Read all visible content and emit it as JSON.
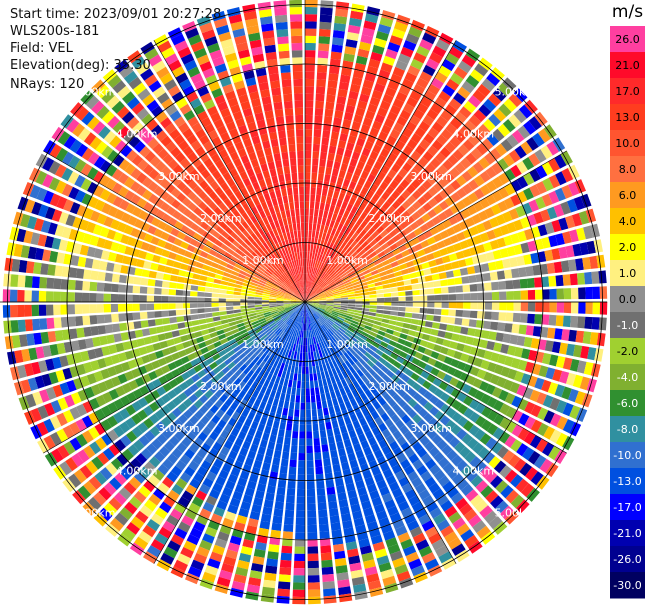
{
  "info": {
    "start_time": "Start time: 2023/09/01 20:27:28",
    "instrument": "WLS200s-181",
    "field": "Field: VEL",
    "elevation": "Elevation(deg): 35.30",
    "nrays": "NRays: 120"
  },
  "chart_data": {
    "type": "heatmap",
    "subtype": "polar-ppi",
    "field": "VEL",
    "units": "m/s",
    "elevation_deg": 35.3,
    "n_rays": 120,
    "range_rings_km": [
      1.0,
      2.0,
      3.0,
      4.0,
      5.0
    ],
    "ring_labels": [
      "1.00km",
      "2.00km",
      "3.00km",
      "4.00km",
      "5.00km"
    ],
    "max_range_km": 5.9,
    "colorbar": {
      "ticks": [
        "26.0",
        "21.0",
        "17.0",
        "13.0",
        "10.0",
        "8.0",
        "6.0",
        "4.0",
        "2.0",
        "1.0",
        "0.0",
        "-1.0",
        "-2.0",
        "-4.0",
        "-6.0",
        "-8.0",
        "-10.0",
        "-13.0",
        "-17.0",
        "-21.0",
        "-26.0",
        "-30.0"
      ],
      "colors": [
        "#ff3fa0",
        "#ff0a2a",
        "#ff2a2a",
        "#ff3d1f",
        "#ff5530",
        "#ff7040",
        "#ff9a20",
        "#ffc000",
        "#ffff00",
        "#fff080",
        "#909090",
        "#707070",
        "#a0d030",
        "#80b030",
        "#309030",
        "#3090a0",
        "#3070d0",
        "#0050e0",
        "#0000ff",
        "#0000b0",
        "#000090",
        "#000060"
      ]
    },
    "sectors": [
      {
        "azimuth_range_deg": [
          0,
          90
        ],
        "dominant_value": 13.0
      },
      {
        "azimuth_range_deg": [
          270,
          360
        ],
        "dominant_value": 13.0
      },
      {
        "azimuth_range_deg": [
          90,
          135
        ],
        "dominant_value": -6.0
      },
      {
        "azimuth_range_deg": [
          135,
          225
        ],
        "dominant_value": -13.0
      },
      {
        "azimuth_range_deg": [
          225,
          270
        ],
        "dominant_value": -6.0
      }
    ],
    "noise_beyond_km": 4.0
  }
}
